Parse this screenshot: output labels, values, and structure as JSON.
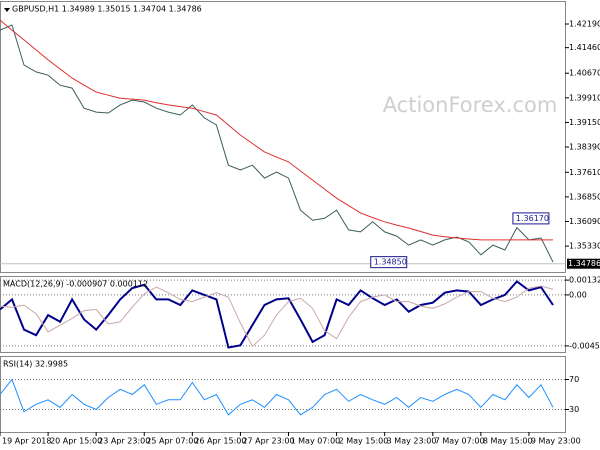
{
  "watermark": "ActionForex.com",
  "chart_data": [
    {
      "type": "line",
      "title": "GBPUSD,H1  1.34989 1.35015 1.34704 1.34786",
      "x": [
        0,
        8,
        16,
        24,
        32,
        40,
        48,
        56,
        64,
        72,
        80,
        88,
        96,
        104,
        112,
        120,
        128,
        136,
        144,
        152,
        160,
        168,
        176,
        184,
        192,
        200,
        208,
        216,
        224,
        232,
        240,
        248,
        256,
        264,
        272,
        280,
        288,
        296,
        304,
        312,
        320,
        328,
        336,
        344,
        352,
        360,
        368
      ],
      "xlim": [
        0,
        376
      ],
      "ylim": [
        1.3453,
        1.4287
      ],
      "yticks": [
        {
          "value": 1.4219,
          "label": "1.42190"
        },
        {
          "value": 1.4146,
          "label": "1.41460"
        },
        {
          "value": 1.4067,
          "label": "1.40670"
        },
        {
          "value": 1.3991,
          "label": "1.39910"
        },
        {
          "value": 1.3915,
          "label": "1.39150"
        },
        {
          "value": 1.3839,
          "label": "1.38390"
        },
        {
          "value": 1.3761,
          "label": "1.37610"
        },
        {
          "value": 1.3685,
          "label": "1.36850"
        },
        {
          "value": 1.3609,
          "label": "1.36090"
        },
        {
          "value": 1.3533,
          "label": "1.35330"
        }
      ],
      "last": {
        "value": 1.34786,
        "label": "1.34786"
      },
      "annotations": [
        {
          "label": "1.36170",
          "value": 1.3617,
          "x": 344
        },
        {
          "label": "1.34850",
          "value": 1.3485,
          "x": 272
        }
      ],
      "series": [
        {
          "color": "#3c5c5c",
          "values": [
            1.42,
            1.4216,
            1.4092,
            1.4071,
            1.4061,
            1.403,
            1.4021,
            1.3959,
            1.3947,
            1.3944,
            1.3969,
            1.3984,
            1.3978,
            1.3959,
            1.3947,
            1.3938,
            1.3969,
            1.3929,
            1.3907,
            1.3783,
            1.3768,
            1.3783,
            1.3743,
            1.3762,
            1.3743,
            1.3644,
            1.3613,
            1.3619,
            1.3644,
            1.3583,
            1.3577,
            1.3608,
            1.3577,
            1.3564,
            1.3536,
            1.3552,
            1.3536,
            1.3552,
            1.3561,
            1.3546,
            1.3506,
            1.3536,
            1.3521,
            1.359,
            1.3552,
            1.3558,
            1.3484
          ]
        },
        {
          "color": "#e03030",
          "values": [
            1.4231,
            1.42,
            1.417,
            1.4139,
            1.4108,
            1.408,
            1.4052,
            1.403,
            1.4009,
            1.3999,
            1.399,
            1.3987,
            1.3984,
            1.3976,
            1.3969,
            1.3964,
            1.3959,
            1.3948,
            1.3938,
            1.3907,
            1.3876,
            1.385,
            1.3824,
            1.3808,
            1.3793,
            1.3765,
            1.3737,
            1.3709,
            1.3681,
            1.3658,
            1.3635,
            1.3621,
            1.3608,
            1.3598,
            1.3589,
            1.3578,
            1.3567,
            1.3562,
            1.3558,
            1.3555,
            1.3552,
            1.3552,
            1.3552,
            1.3552,
            1.3552,
            1.3552,
            1.3552
          ]
        }
      ]
    },
    {
      "type": "line",
      "title": "MACD(12,26,9) -0.000907 0.000112",
      "x": [
        0,
        8,
        16,
        24,
        32,
        40,
        48,
        56,
        64,
        72,
        80,
        88,
        96,
        104,
        112,
        120,
        128,
        136,
        144,
        152,
        160,
        168,
        176,
        184,
        192,
        200,
        208,
        216,
        224,
        232,
        240,
        248,
        256,
        264,
        272,
        280,
        288,
        296,
        304,
        312,
        320,
        328,
        336,
        344,
        352,
        360,
        368
      ],
      "xlim": [
        0,
        376
      ],
      "ylim": [
        -0.0051,
        0.0016
      ],
      "yticks": [
        0.0013224,
        {
          "value": 0,
          "label": "0.00"
        },
        -0.004553
      ],
      "grid": true,
      "series": [
        {
          "color": "#00008b",
          "values": [
            -0.0013,
            -0.0004,
            -0.0031,
            -0.0036,
            -0.0018,
            -0.0024,
            -0.0004,
            -0.0022,
            -0.0031,
            -0.0018,
            -0.0004,
            0.0006,
            0.0009,
            -0.0004,
            -0.0004,
            -0.0009,
            0.0004,
            0,
            -0.0004,
            -0.0047,
            -0.0045,
            -0.0027,
            -0.0009,
            -0.0004,
            -0.0003,
            -0.0022,
            -0.0042,
            -0.0036,
            -0.0004,
            -0.0009,
            0.0004,
            -0.0003,
            -0.0009,
            -0.0004,
            -0.0015,
            -0.0009,
            -0.0007,
            0.0002,
            0.0004,
            0.0003,
            -0.0009,
            -0.0004,
            0,
            0.0012,
            0.0004,
            0.0007,
            -0.0009
          ]
        },
        {
          "color": "#c8a8a8",
          "values": [
            -0.001,
            -0.0011,
            -0.0009,
            -0.0017,
            -0.0033,
            -0.0027,
            -0.0021,
            -0.0014,
            -0.0013,
            -0.0026,
            -0.0024,
            -0.0011,
            0.0001,
            0.0007,
            0.0002,
            -0.0004,
            -0.0006,
            -0.0002,
            0.0002,
            -0.0002,
            -0.0025,
            -0.0046,
            -0.0036,
            -0.0018,
            -0.0006,
            -0.0003,
            -0.0012,
            -0.0032,
            -0.0039,
            -0.002,
            -0.0006,
            -0.0002,
            0,
            -0.0006,
            -0.0006,
            -0.001,
            -0.0012,
            -0.0008,
            -0.0002,
            0.0003,
            0.0003,
            -0.0003,
            -0.0006,
            -0.0002,
            0.0006,
            0.0008,
            0.0005
          ]
        }
      ]
    },
    {
      "type": "line",
      "title": "RSI(14) 32.9985",
      "x": [
        0,
        8,
        16,
        24,
        32,
        40,
        48,
        56,
        64,
        72,
        80,
        88,
        96,
        104,
        112,
        120,
        128,
        136,
        144,
        152,
        160,
        168,
        176,
        184,
        192,
        200,
        208,
        216,
        224,
        232,
        240,
        248,
        256,
        264,
        272,
        280,
        288,
        296,
        304,
        312,
        320,
        328,
        336,
        344,
        352,
        360,
        368
      ],
      "xlim": [
        0,
        376
      ],
      "ylim": [
        0,
        100
      ],
      "yticks": [
        70,
        30
      ],
      "grid": true,
      "xticks": [
        {
          "value": 0,
          "label": "19 Apr 2018"
        },
        {
          "value": 32,
          "label": "20 Apr 15:00"
        },
        {
          "value": 64,
          "label": "23 Apr 23:00"
        },
        {
          "value": 96,
          "label": "25 Apr 07:00"
        },
        {
          "value": 128,
          "label": "26 Apr 15:00"
        },
        {
          "value": 160,
          "label": "27 Apr 23:00"
        },
        {
          "value": 192,
          "label": "1 May 07:00"
        },
        {
          "value": 224,
          "label": "2 May 15:00"
        },
        {
          "value": 256,
          "label": "3 May 23:00"
        },
        {
          "value": 288,
          "label": "7 May 07:00"
        },
        {
          "value": 320,
          "label": "8 May 15:00"
        },
        {
          "value": 352,
          "label": "9 May 23:00"
        }
      ],
      "series": [
        {
          "color": "#1e90ff",
          "values": [
            50,
            70,
            27,
            37,
            43,
            33,
            50,
            37,
            30,
            46,
            57,
            50,
            63,
            37,
            43,
            43,
            66,
            43,
            50,
            23,
            37,
            43,
            33,
            50,
            43,
            23,
            33,
            50,
            57,
            41,
            50,
            43,
            37,
            46,
            33,
            46,
            41,
            50,
            57,
            50,
            33,
            50,
            43,
            63,
            46,
            63,
            33
          ]
        }
      ]
    }
  ]
}
